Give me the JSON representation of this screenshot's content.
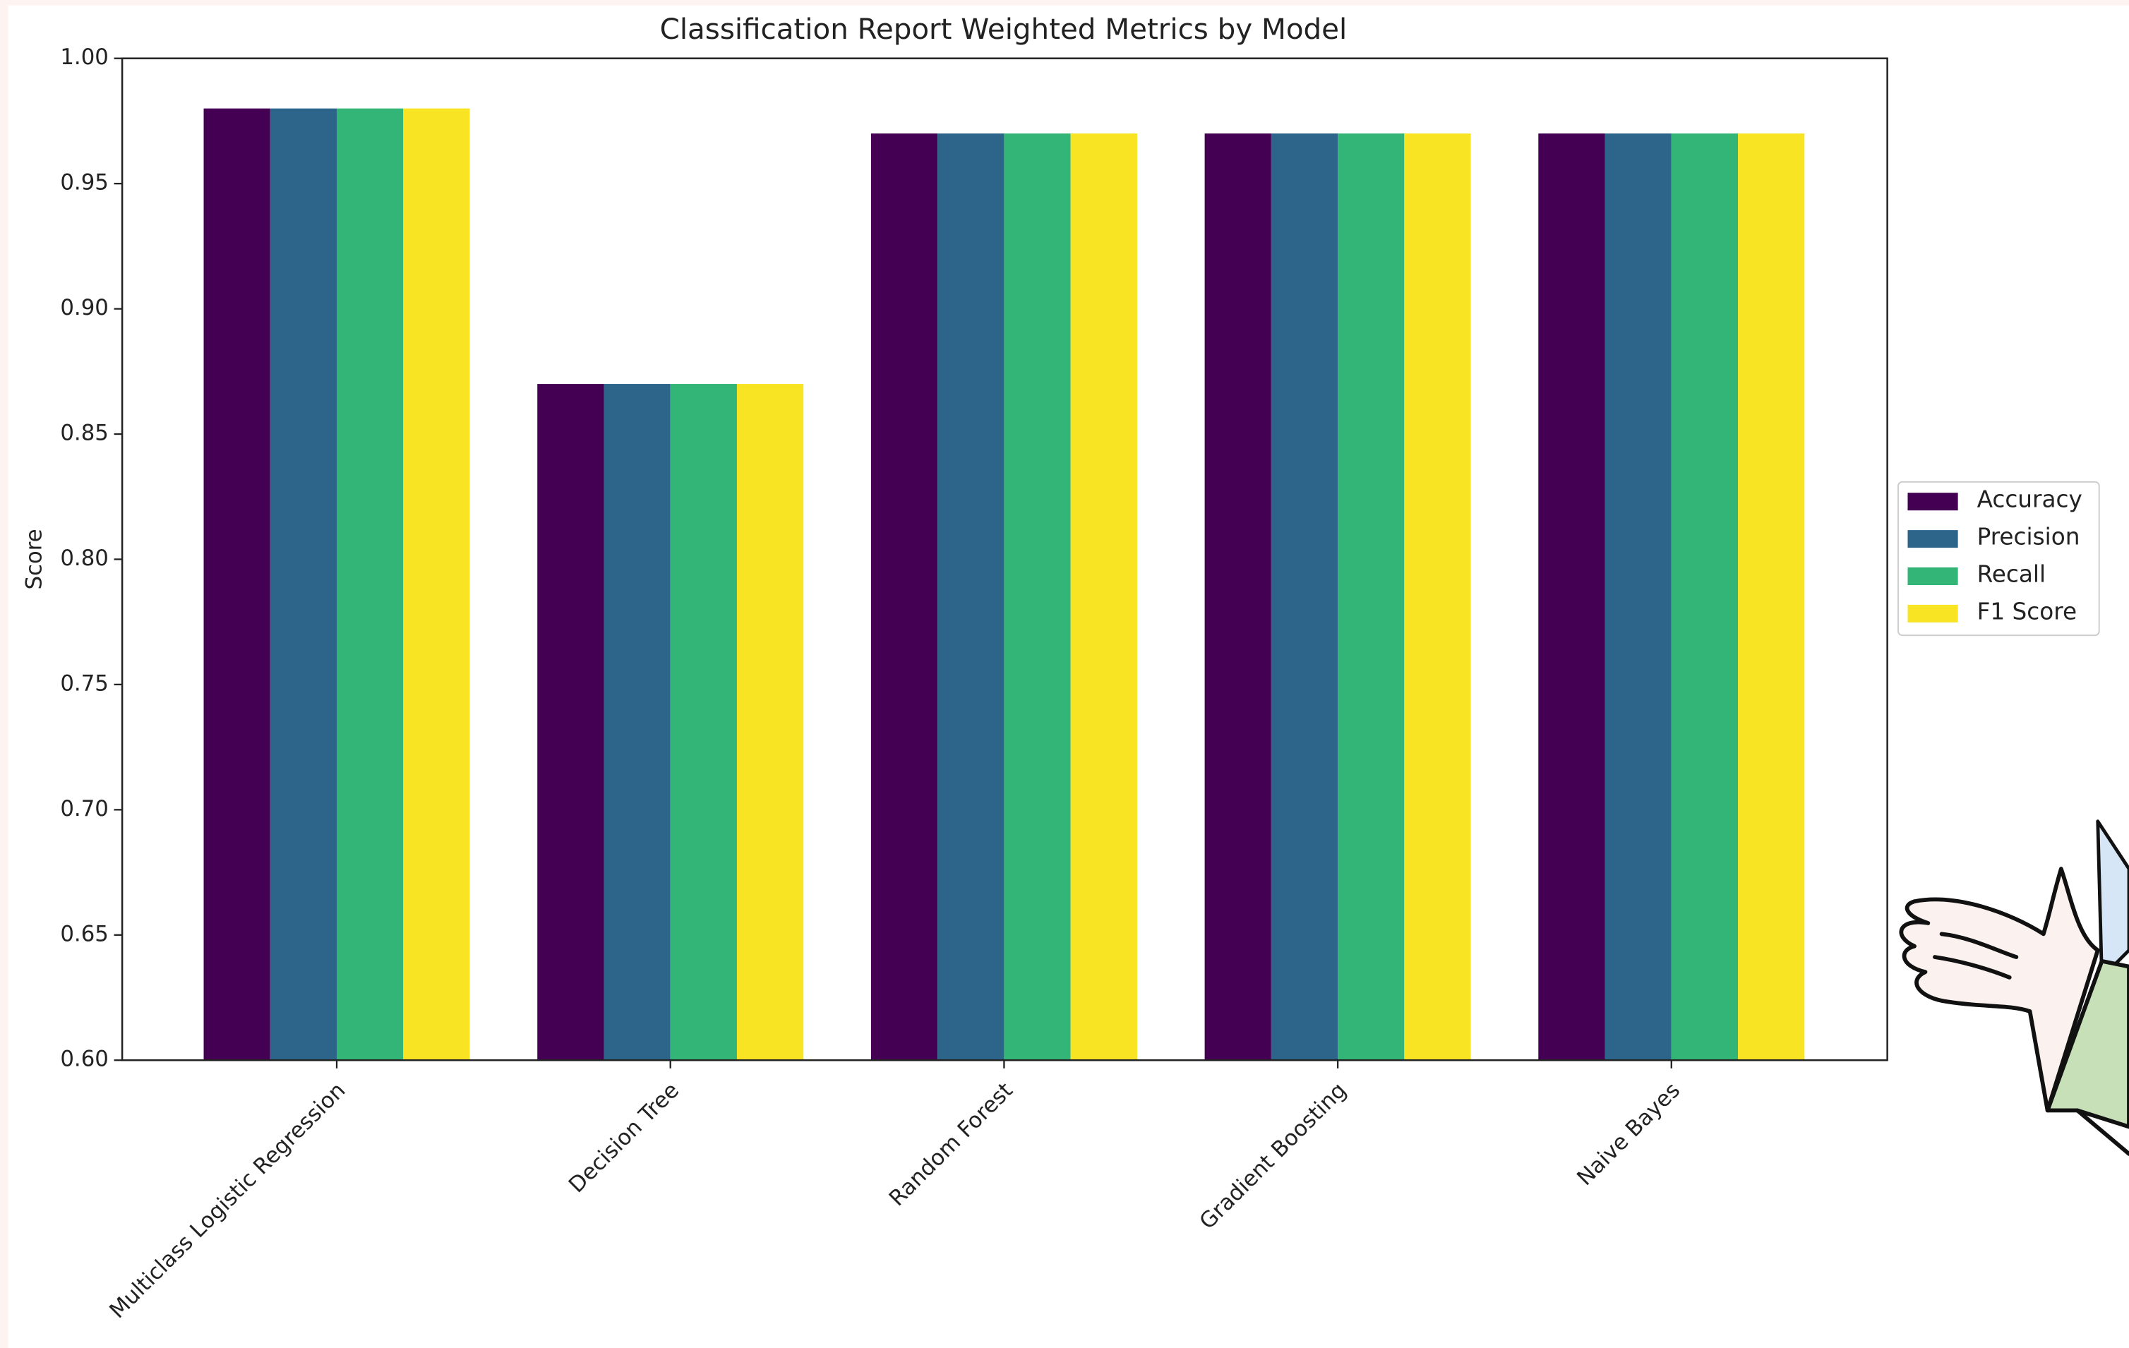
{
  "chart_data": {
    "type": "bar",
    "title": "Classification Report Weighted Metrics by Model",
    "ylabel": "Score",
    "categories": [
      "Multiclass Logistic Regression",
      "Decision Tree",
      "Random Forest",
      "Gradient Boosting",
      "Naive Bayes"
    ],
    "series": [
      {
        "name": "Accuracy",
        "color": "#440154",
        "values": [
          0.98,
          0.87,
          0.97,
          0.97,
          0.97
        ]
      },
      {
        "name": "Precision",
        "color": "#2c648a",
        "values": [
          0.98,
          0.87,
          0.97,
          0.97,
          0.97
        ]
      },
      {
        "name": "Recall",
        "color": "#33b577",
        "values": [
          0.98,
          0.87,
          0.97,
          0.97,
          0.97
        ]
      },
      {
        "name": "F1 Score",
        "color": "#f8e422",
        "values": [
          0.98,
          0.87,
          0.97,
          0.97,
          0.97
        ]
      }
    ],
    "ylim": [
      0.6,
      1.0
    ],
    "yticks": [
      {
        "value": 0.6,
        "label": "0.60"
      },
      {
        "value": 0.65,
        "label": "0.65"
      },
      {
        "value": 0.7,
        "label": "0.70"
      },
      {
        "value": 0.75,
        "label": "0.75"
      },
      {
        "value": 0.8,
        "label": "0.80"
      },
      {
        "value": 0.85,
        "label": "0.85"
      },
      {
        "value": 0.9,
        "label": "0.90"
      },
      {
        "value": 0.95,
        "label": "0.95"
      },
      {
        "value": 1.0,
        "label": "1.00"
      }
    ],
    "grid": false
  }
}
